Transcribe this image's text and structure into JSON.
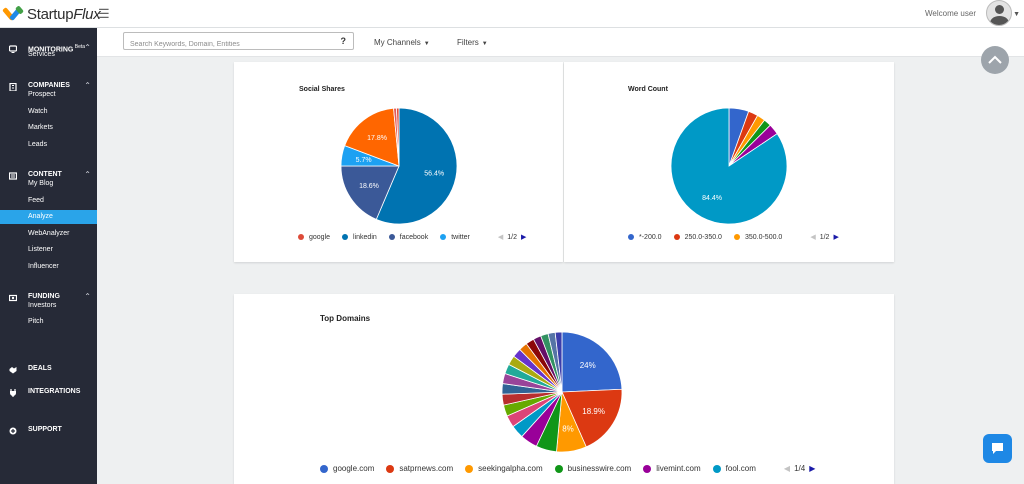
{
  "app": {
    "brand": {
      "name_a": "Startup",
      "name_b": "Flux"
    },
    "welcome": "Welcome user"
  },
  "sidebar": {
    "sections": [
      {
        "label": "MONITORING",
        "badge": "Beta",
        "icon": "monitor-icon",
        "items": [
          "Services"
        ]
      },
      {
        "label": "COMPANIES",
        "icon": "building-icon",
        "items": [
          "Prospect",
          "Watch",
          "Markets",
          "Leads"
        ]
      },
      {
        "label": "CONTENT",
        "icon": "newspaper-icon",
        "items": [
          "My Blog",
          "Feed",
          "Analyze",
          "WebAnalyzer",
          "Listener",
          "Influencer"
        ]
      },
      {
        "label": "FUNDING",
        "icon": "money-icon",
        "items": [
          "Investors",
          "Pitch"
        ]
      },
      {
        "label": "DEALS",
        "icon": "handshake-icon",
        "items": []
      },
      {
        "label": "INTEGRATIONS",
        "icon": "plug-icon",
        "items": []
      },
      {
        "label": "SUPPORT",
        "icon": "plus-circle-icon",
        "items": []
      }
    ],
    "active_item": "Analyze"
  },
  "filters": {
    "search_placeholder": "Search Keywords, Domain, Entities",
    "search_value": "",
    "help_glyph": "?",
    "channels_label": "My Channels",
    "filters_label": "Filters"
  },
  "colors": {
    "sidebar_bg": "#262a37",
    "active_item": "#2aa4e9",
    "accent": "#1e88e5",
    "pager_next": "#1a1aa8"
  },
  "chart_data": [
    {
      "type": "pie",
      "title": "Social Shares",
      "slices": [
        {
          "name": "linkedin",
          "value": 56.4,
          "color": "#0073b1"
        },
        {
          "name": "facebook",
          "value": 18.6,
          "color": "#3b5998"
        },
        {
          "name": "twitter",
          "value": 5.7,
          "color": "#1da1f2"
        },
        {
          "name": "",
          "value": 17.8,
          "color": "#ff6600"
        },
        {
          "name": "",
          "value": 0.8,
          "color": "#e35b5b"
        },
        {
          "name": "google",
          "value": 0.7,
          "color": "#dd4b39"
        }
      ],
      "legend": [
        {
          "name": "google",
          "color": "#dd4b39"
        },
        {
          "name": "linkedin",
          "color": "#0073b1"
        },
        {
          "name": "facebook",
          "color": "#3b5998"
        },
        {
          "name": "twitter",
          "color": "#1da1f2"
        }
      ],
      "pager": "1/2",
      "legend_position": "bottom"
    },
    {
      "type": "pie",
      "title": "Word Count",
      "slices": [
        {
          "name": "*-200.0",
          "value": 5.5,
          "color": "#3366cc"
        },
        {
          "name": "250.0-350.0",
          "value": 2.7,
          "color": "#dc3912"
        },
        {
          "name": "350.0-500.0",
          "value": 2.3,
          "color": "#ff9900"
        },
        {
          "name": "",
          "value": 2.1,
          "color": "#109618"
        },
        {
          "name": "",
          "value": 3.0,
          "color": "#990099"
        },
        {
          "name": "",
          "value": 84.4,
          "color": "#0099c6"
        }
      ],
      "legend": [
        {
          "name": "*-200.0",
          "color": "#3366cc"
        },
        {
          "name": "250.0-350.0",
          "color": "#dc3912"
        },
        {
          "name": "350.0-500.0",
          "color": "#ff9900"
        }
      ],
      "pager": "1/2",
      "legend_position": "bottom"
    },
    {
      "type": "pie",
      "title": "Top Domains",
      "slices": [
        {
          "name": "google.com",
          "value": 24,
          "color": "#3366cc"
        },
        {
          "name": "satprnews.com",
          "value": 18.9,
          "color": "#dc3912"
        },
        {
          "name": "seekingalpha.com",
          "value": 8,
          "color": "#ff9900"
        },
        {
          "name": "businesswire.com",
          "value": 5.5,
          "color": "#109618"
        },
        {
          "name": "livemint.com",
          "value": 4.6,
          "color": "#990099"
        },
        {
          "name": "fool.com",
          "value": 3.5,
          "color": "#0099c6"
        },
        {
          "name": "",
          "value": 3.2,
          "color": "#dd4477"
        },
        {
          "name": "",
          "value": 3.0,
          "color": "#66aa00"
        },
        {
          "name": "",
          "value": 2.9,
          "color": "#b82e2e"
        },
        {
          "name": "",
          "value": 2.8,
          "color": "#316395"
        },
        {
          "name": "",
          "value": 2.7,
          "color": "#994499"
        },
        {
          "name": "",
          "value": 2.6,
          "color": "#22aa99"
        },
        {
          "name": "",
          "value": 2.5,
          "color": "#aaaa11"
        },
        {
          "name": "",
          "value": 2.4,
          "color": "#6633cc"
        },
        {
          "name": "",
          "value": 2.3,
          "color": "#e67300"
        },
        {
          "name": "",
          "value": 2.2,
          "color": "#8b0707"
        },
        {
          "name": "",
          "value": 2.1,
          "color": "#651067"
        },
        {
          "name": "",
          "value": 2.0,
          "color": "#329262"
        },
        {
          "name": "",
          "value": 1.9,
          "color": "#5574a6"
        },
        {
          "name": "",
          "value": 1.8,
          "color": "#3b3eac"
        }
      ],
      "legend": [
        {
          "name": "google.com",
          "color": "#3366cc"
        },
        {
          "name": "satprnews.com",
          "color": "#dc3912"
        },
        {
          "name": "seekingalpha.com",
          "color": "#ff9900"
        },
        {
          "name": "businesswire.com",
          "color": "#109618"
        },
        {
          "name": "livemint.com",
          "color": "#990099"
        },
        {
          "name": "fool.com",
          "color": "#0099c6"
        }
      ],
      "pager": "1/4",
      "legend_position": "bottom"
    }
  ],
  "slice_labels": [
    [
      "56.4%",
      "18.6%",
      "5.7%",
      "17.8%",
      "",
      ""
    ],
    [
      "",
      "",
      "",
      "",
      "",
      "84.4%"
    ],
    [
      "24%",
      "18.9%",
      "8%",
      "",
      "",
      "",
      "",
      "",
      "",
      "",
      "",
      "",
      "",
      "",
      "",
      "",
      "",
      "",
      "",
      ""
    ]
  ]
}
